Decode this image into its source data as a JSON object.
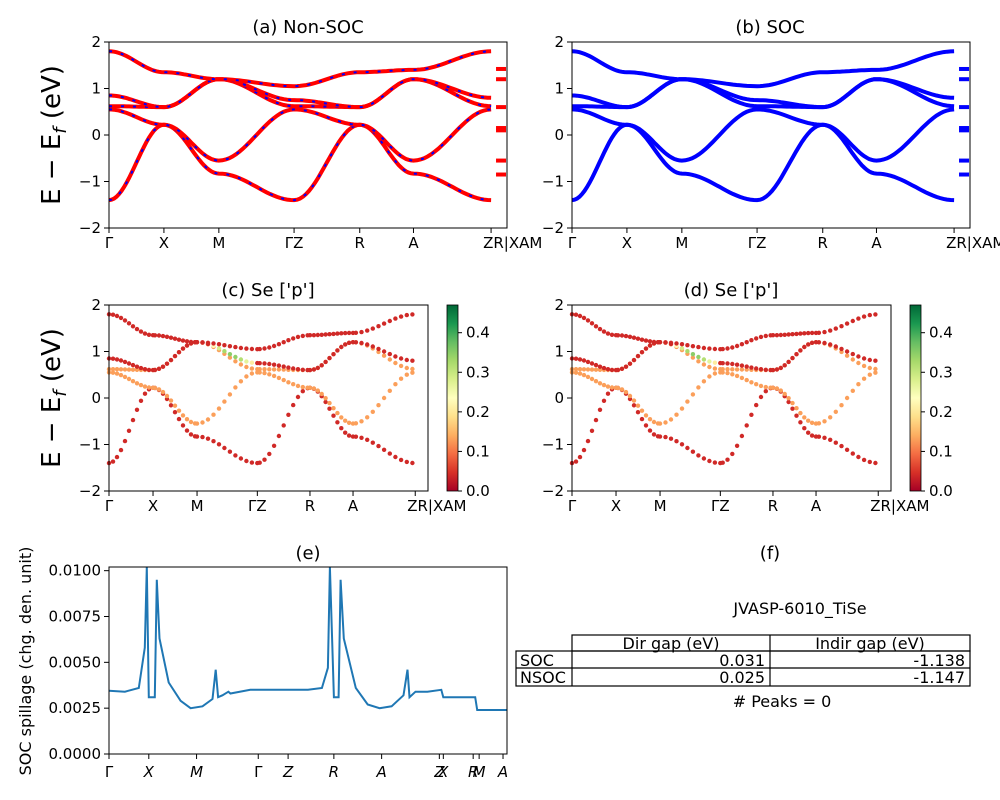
{
  "colors": {
    "nonsoc_line": "#ff0000",
    "nonsoc_dash": "#0000ff",
    "soc_line": "#0000ff",
    "spillage_line": "#1f77b4",
    "colormap": [
      "#a50026",
      "#d73027",
      "#f46d43",
      "#fdae61",
      "#fee08b",
      "#ffffbf",
      "#d9ef8b",
      "#a6d96a",
      "#66bd63",
      "#1a9850",
      "#006837"
    ]
  },
  "chart_data": [
    {
      "id": "a",
      "type": "line",
      "title": "(a) Non-SOC",
      "ylabel": "E − E_f (eV)",
      "ylim": [
        -2,
        2
      ],
      "yticks": [
        "2",
        "1",
        "0",
        "−1",
        "−2"
      ],
      "xticks": [
        "Γ",
        "X",
        "M",
        "ΓZ",
        "R",
        "A",
        "ZR|XAM"
      ],
      "bands_at_high_symmetry_points": {
        "points": [
          "Γ",
          "X",
          "M",
          "Γ",
          "Z",
          "R",
          "A",
          "Z"
        ],
        "series": [
          {
            "values": [
              -1.4,
              0.22,
              -0.83,
              -1.4,
              -1.4,
              0.22,
              -0.83,
              -1.4
            ]
          },
          {
            "values": [
              0.55,
              0.22,
              -0.55,
              0.55,
              0.55,
              0.22,
              -0.55,
              0.55
            ]
          },
          {
            "values": [
              0.62,
              0.6,
              1.2,
              0.62,
              0.62,
              0.6,
              1.2,
              0.62
            ]
          },
          {
            "values": [
              0.85,
              0.6,
              1.2,
              0.75,
              0.75,
              0.6,
              1.2,
              0.8
            ]
          },
          {
            "values": [
              1.8,
              1.35,
              1.2,
              1.05,
              1.05,
              1.35,
              1.4,
              1.8
            ]
          }
        ]
      }
    },
    {
      "id": "b",
      "type": "line",
      "title": "(b) SOC",
      "ylim": [
        -2,
        2
      ],
      "yticks": [
        "2",
        "1",
        "0",
        "−1",
        "−2"
      ],
      "xticks": [
        "Γ",
        "X",
        "M",
        "ΓZ",
        "R",
        "A",
        "ZR|XAM"
      ]
    },
    {
      "id": "c",
      "type": "scatter",
      "title": "(c)  Se ['p']",
      "ylabel": "E − E_f (eV)",
      "ylim": [
        -2,
        2
      ],
      "yticks": [
        "2",
        "1",
        "0",
        "−1",
        "−2"
      ],
      "xticks": [
        "Γ",
        "X",
        "M",
        "ΓZ",
        "R",
        "A",
        "ZR|XAM"
      ],
      "colorbar": {
        "range": [
          0,
          0.47
        ],
        "ticks": [
          "0.0",
          "0.1",
          "0.2",
          "0.3",
          "0.4"
        ]
      }
    },
    {
      "id": "d",
      "type": "scatter",
      "title": "(d) Se ['p']",
      "ylim": [
        -2,
        2
      ],
      "yticks": [
        "2",
        "1",
        "0",
        "−1",
        "−2"
      ],
      "xticks": [
        "Γ",
        "X",
        "M",
        "ΓZ",
        "R",
        "A",
        "ZR|XAM"
      ],
      "colorbar": {
        "range": [
          0,
          0.47
        ],
        "ticks": [
          "0.0",
          "0.1",
          "0.2",
          "0.3",
          "0.4"
        ]
      }
    },
    {
      "id": "e",
      "type": "line",
      "title": "(e)",
      "ylabel": "SOC spillage (chg. den. unit)",
      "ylim": [
        0,
        0.0102
      ],
      "yticks": [
        "0.0100",
        "0.0075",
        "0.0050",
        "0.0025",
        "0.0000"
      ],
      "xticks": [
        "Γ",
        "X",
        "M",
        "Γ",
        "Z",
        "R",
        "A",
        "Z",
        "X",
        "R",
        "M",
        "A"
      ],
      "points": [
        [
          0,
          0.00345
        ],
        [
          0.04,
          0.0034
        ],
        [
          0.075,
          0.0036
        ],
        [
          0.09,
          0.0058
        ],
        [
          0.095,
          0.0102
        ],
        [
          0.1,
          0.0031
        ],
        [
          0.115,
          0.0031
        ],
        [
          0.12,
          0.0095
        ],
        [
          0.127,
          0.0063
        ],
        [
          0.15,
          0.0039
        ],
        [
          0.18,
          0.0029
        ],
        [
          0.205,
          0.0025
        ],
        [
          0.235,
          0.0026
        ],
        [
          0.26,
          0.003
        ],
        [
          0.268,
          0.0046
        ],
        [
          0.274,
          0.0031
        ],
        [
          0.285,
          0.0032
        ],
        [
          0.3,
          0.0034
        ],
        [
          0.305,
          0.0033
        ],
        [
          0.355,
          0.0035
        ],
        [
          0.5,
          0.0035
        ],
        [
          0.535,
          0.0036
        ],
        [
          0.55,
          0.0047
        ],
        [
          0.555,
          0.0102
        ],
        [
          0.565,
          0.0031
        ],
        [
          0.577,
          0.0031
        ],
        [
          0.582,
          0.0095
        ],
        [
          0.59,
          0.0063
        ],
        [
          0.62,
          0.0036
        ],
        [
          0.65,
          0.0027
        ],
        [
          0.68,
          0.0025
        ],
        [
          0.71,
          0.0026
        ],
        [
          0.74,
          0.0032
        ],
        [
          0.75,
          0.0046
        ],
        [
          0.755,
          0.0031
        ],
        [
          0.77,
          0.0034
        ],
        [
          0.8,
          0.0034
        ],
        [
          0.835,
          0.0035
        ],
        [
          0.84,
          0.0031
        ],
        [
          0.92,
          0.0031
        ],
        [
          0.925,
          0.0024
        ],
        [
          1,
          0.0024
        ]
      ]
    },
    {
      "id": "f",
      "type": "table",
      "title": "(f)",
      "caption": "JVASP-6010_TiSe",
      "columns": [
        "Dir gap (eV)",
        "Indir gap (eV)"
      ],
      "rows": [
        {
          "label": "SOC",
          "values": [
            "0.031",
            "-1.138"
          ]
        },
        {
          "label": "NSOC",
          "values": [
            "0.025",
            "-1.147"
          ]
        }
      ],
      "footer": "# Peaks = 0"
    }
  ]
}
